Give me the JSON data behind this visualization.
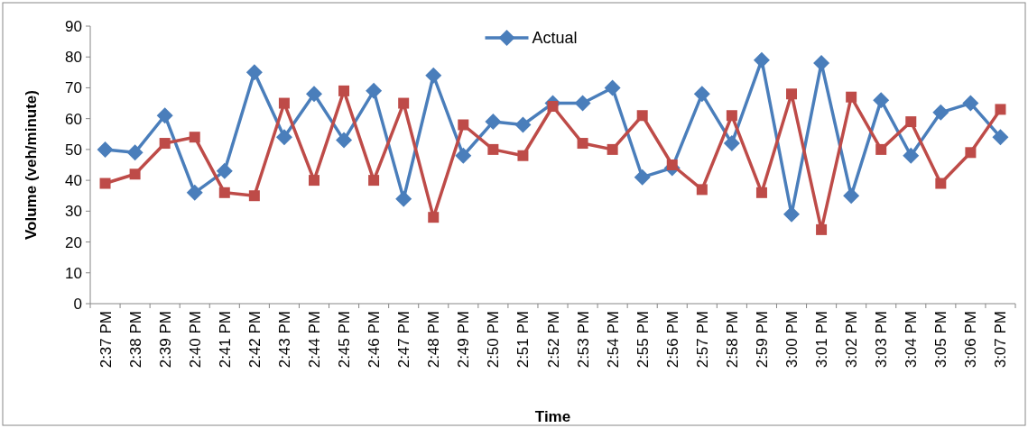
{
  "chart_data": {
    "type": "line",
    "xlabel": "Time",
    "ylabel": "Volume (veh/minute)",
    "categories": [
      "2:37 PM",
      "2:38 PM",
      "2:39 PM",
      "2:40 PM",
      "2:41 PM",
      "2:42 PM",
      "2:43 PM",
      "2:44 PM",
      "2:45 PM",
      "2:46 PM",
      "2:47 PM",
      "2:48 PM",
      "2:49 PM",
      "2:50 PM",
      "2:51 PM",
      "2:52 PM",
      "2:53 PM",
      "2:54 PM",
      "2:55 PM",
      "2:56 PM",
      "2:57 PM",
      "2:58 PM",
      "2:59 PM",
      "3:00 PM",
      "3:01 PM",
      "3:02 PM",
      "3:03 PM",
      "3:04 PM",
      "3:05 PM",
      "3:06 PM",
      "3:07 PM"
    ],
    "series": [
      {
        "name": "Actual",
        "color": "#4a7ebb",
        "marker": "diamond",
        "values": [
          50,
          49,
          61,
          36,
          43,
          75,
          54,
          68,
          53,
          69,
          34,
          74,
          48,
          59,
          58,
          65,
          65,
          70,
          41,
          44,
          68,
          52,
          79,
          29,
          78,
          35,
          66,
          48,
          62,
          65,
          54
        ]
      },
      {
        "color": "#be4b48",
        "marker": "square",
        "values": [
          39,
          42,
          52,
          54,
          36,
          35,
          65,
          40,
          69,
          40,
          65,
          28,
          58,
          50,
          48,
          64,
          52,
          50,
          61,
          45,
          37,
          61,
          36,
          68,
          24,
          67,
          50,
          59,
          39,
          49,
          63
        ]
      }
    ],
    "ylim": [
      0,
      90
    ],
    "yticks": [
      0,
      10,
      20,
      30,
      40,
      50,
      60,
      70,
      80,
      90
    ],
    "grid": false,
    "legend": "top"
  }
}
